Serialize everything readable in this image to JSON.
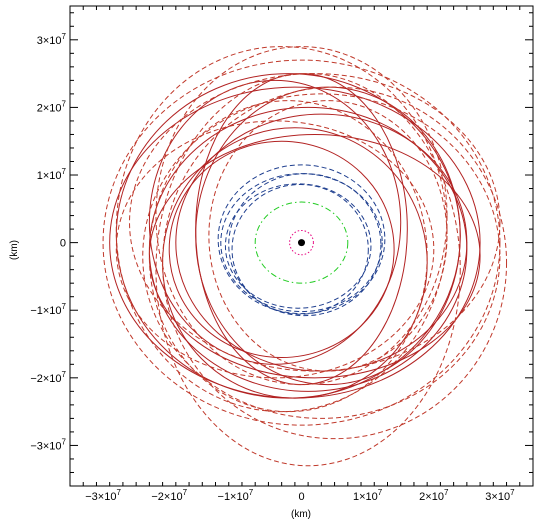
{
  "chart_data": {
    "type": "scatter",
    "title": "",
    "xlabel": "(km)",
    "ylabel": "(km)",
    "xlim": [
      -35000000,
      35000000
    ],
    "ylim": [
      -36000000,
      35000000
    ],
    "grid": false,
    "legend": "none",
    "x_ticks": [
      {
        "value": -30000000,
        "mant": "−3×10",
        "exp": "7"
      },
      {
        "value": -20000000,
        "mant": "−2×10",
        "exp": "7"
      },
      {
        "value": -10000000,
        "mant": "−1×10",
        "exp": "7"
      },
      {
        "value": 0,
        "mant": "0",
        "exp": ""
      },
      {
        "value": 10000000,
        "mant": "1×10",
        "exp": "7"
      },
      {
        "value": 20000000,
        "mant": "2×10",
        "exp": "7"
      },
      {
        "value": 30000000,
        "mant": "3×10",
        "exp": "7"
      }
    ],
    "y_ticks": [
      {
        "value": -30000000,
        "mant": "−3×10",
        "exp": "7"
      },
      {
        "value": -20000000,
        "mant": "−2×10",
        "exp": "7"
      },
      {
        "value": -10000000,
        "mant": "−1×10",
        "exp": "7"
      },
      {
        "value": 0,
        "mant": "0",
        "exp": ""
      },
      {
        "value": 10000000,
        "mant": "1×10",
        "exp": "7"
      },
      {
        "value": 20000000,
        "mant": "2×10",
        "exp": "7"
      },
      {
        "value": 30000000,
        "mant": "3×10",
        "exp": "7"
      }
    ],
    "central_body": {
      "x": 0,
      "y": 0,
      "r": 450000,
      "color": "#000000"
    },
    "series": [
      {
        "color": "#e6007e",
        "dash": "dot",
        "orbits": [
          {
            "cx": 0,
            "cy": 0,
            "rx": 1800000,
            "ry": 1800000
          }
        ]
      },
      {
        "color": "#22cc22",
        "dash": "dashdot",
        "orbits": [
          {
            "cx": 0,
            "cy": 0,
            "rx": 7000000,
            "ry": 6000000
          }
        ]
      },
      {
        "color": "#1f3f8f",
        "dash": "dash",
        "orbits": [
          {
            "cx": 0,
            "cy": 0,
            "rx": 12200000,
            "ry": 10200000
          },
          {
            "cx": -500000,
            "cy": -500000,
            "rx": 11000000,
            "ry": 9200000
          },
          {
            "cx": 500000,
            "cy": -300000,
            "rx": 11500000,
            "ry": 10500000
          },
          {
            "cx": 0,
            "cy": 500000,
            "rx": 12600000,
            "ry": 11000000
          },
          {
            "cx": -200000,
            "cy": -1000000,
            "rx": 10300000,
            "ry": 9600000
          }
        ]
      },
      {
        "color": "#b22222",
        "dash": "solid",
        "orbits": [
          {
            "cx": -2000000,
            "cy": 1000000,
            "rx": 26000000,
            "ry": 24000000
          },
          {
            "cx": 1000000,
            "cy": -1000000,
            "rx": 24000000,
            "ry": 21000000
          },
          {
            "cx": -1000000,
            "cy": -3000000,
            "rx": 20000000,
            "ry": 20000000
          },
          {
            "cx": 3000000,
            "cy": 0,
            "rx": 22000000,
            "ry": 19000000
          },
          {
            "cx": -4000000,
            "cy": 3000000,
            "rx": 19000000,
            "ry": 21000000
          },
          {
            "cx": 0,
            "cy": 2000000,
            "rx": 16000000,
            "ry": 23000000
          },
          {
            "cx": 2000000,
            "cy": -2000000,
            "rx": 25000000,
            "ry": 18000000
          },
          {
            "cx": -3000000,
            "cy": -1000000,
            "rx": 17000000,
            "ry": 16000000
          },
          {
            "cx": 4000000,
            "cy": 1000000,
            "rx": 20000000,
            "ry": 22000000
          },
          {
            "cx": -1000000,
            "cy": 0,
            "rx": 28000000,
            "ry": 23000000
          }
        ]
      },
      {
        "color": "#c0392b",
        "dash": "dash",
        "orbits": [
          {
            "cx": 0,
            "cy": 0,
            "rx": 30000000,
            "ry": 27000000
          },
          {
            "cx": 3000000,
            "cy": -2000000,
            "rx": 27000000,
            "ry": 24000000
          },
          {
            "cx": -3000000,
            "cy": 2000000,
            "rx": 25000000,
            "ry": 27000000
          },
          {
            "cx": 1000000,
            "cy": -4000000,
            "rx": 23000000,
            "ry": 29000000
          },
          {
            "cx": 2000000,
            "cy": 3000000,
            "rx": 28000000,
            "ry": 22000000
          },
          {
            "cx": -2000000,
            "cy": -2000000,
            "rx": 21000000,
            "ry": 23000000
          },
          {
            "cx": 4000000,
            "cy": 1000000,
            "rx": 18000000,
            "ry": 20000000
          },
          {
            "cx": -4000000,
            "cy": -1000000,
            "rx": 24000000,
            "ry": 19000000
          },
          {
            "cx": 0,
            "cy": 4000000,
            "rx": 22000000,
            "ry": 25000000
          },
          {
            "cx": 5000000,
            "cy": -3000000,
            "rx": 26000000,
            "ry": 26000000
          }
        ]
      }
    ]
  }
}
